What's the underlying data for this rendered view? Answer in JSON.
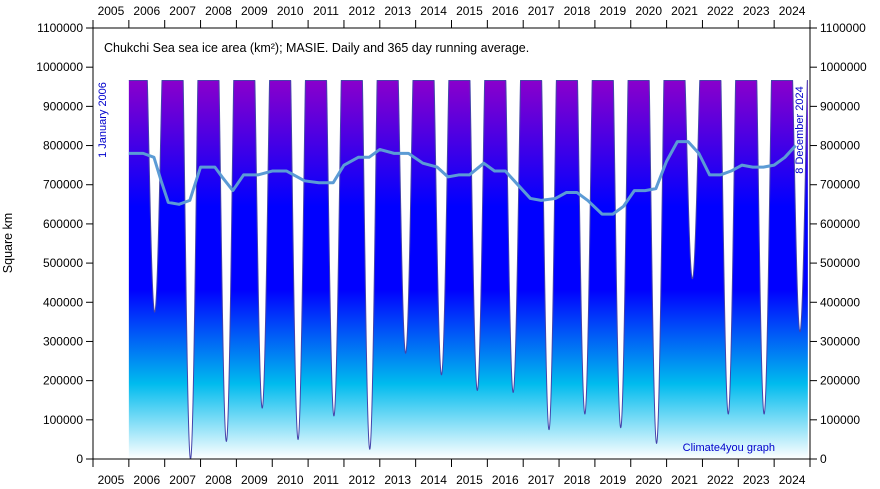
{
  "chart_data": {
    "type": "area",
    "title": "Chukchi Sea sea ice area (km²); MASIE. Daily and 365 day running average.",
    "ylabel": "Square km",
    "xlabel": "",
    "credit": "Climate4you graph",
    "start_label": "1 January 2006",
    "end_label": "8 December 2024",
    "ylim": [
      0,
      1100000
    ],
    "xlim": [
      2005,
      2025
    ],
    "grid": false,
    "x_ticks": [
      "2005",
      "2006",
      "2007",
      "2008",
      "2009",
      "2010",
      "2011",
      "2012",
      "2013",
      "2014",
      "2015",
      "2016",
      "2017",
      "2018",
      "2019",
      "2020",
      "2021",
      "2022",
      "2023",
      "2024"
    ],
    "y_ticks": [
      "0",
      "100000",
      "200000",
      "300000",
      "400000",
      "500000",
      "600000",
      "700000",
      "800000",
      "900000",
      "1000000",
      "1100000"
    ],
    "colors": {
      "fill_top": "#8800cc",
      "fill_mid": "#0000ff",
      "fill_low": "#00bbee",
      "fill_bottom": "#ffffff",
      "daily_line": "#4444aa",
      "running_average": "#5b9bd5",
      "annotation": "#0000cc"
    },
    "series": [
      {
        "name": "Daily",
        "annual_max": 966000,
        "annual_minima": [
          {
            "year": 2006,
            "value": 375000
          },
          {
            "year": 2007,
            "value": 0
          },
          {
            "year": 2008,
            "value": 45000
          },
          {
            "year": 2009,
            "value": 130000
          },
          {
            "year": 2010,
            "value": 50000
          },
          {
            "year": 2011,
            "value": 110000
          },
          {
            "year": 2012,
            "value": 25000
          },
          {
            "year": 2013,
            "value": 270000
          },
          {
            "year": 2014,
            "value": 215000
          },
          {
            "year": 2015,
            "value": 175000
          },
          {
            "year": 2016,
            "value": 170000
          },
          {
            "year": 2017,
            "value": 75000
          },
          {
            "year": 2018,
            "value": 115000
          },
          {
            "year": 2019,
            "value": 80000
          },
          {
            "year": 2020,
            "value": 40000
          },
          {
            "year": 2021,
            "value": 460000
          },
          {
            "year": 2022,
            "value": 115000
          },
          {
            "year": 2023,
            "value": 115000
          },
          {
            "year": 2024,
            "value": 325000
          }
        ]
      },
      {
        "name": "365 day running average",
        "x": [
          2006.0,
          2006.4,
          2006.7,
          2006.9,
          2007.1,
          2007.4,
          2007.7,
          2008.0,
          2008.4,
          2008.6,
          2008.9,
          2009.2,
          2009.6,
          2010.0,
          2010.4,
          2010.9,
          2011.3,
          2011.7,
          2012.0,
          2012.4,
          2012.7,
          2013.0,
          2013.4,
          2013.8,
          2014.2,
          2014.6,
          2014.9,
          2015.2,
          2015.5,
          2015.9,
          2016.2,
          2016.5,
          2016.9,
          2017.2,
          2017.5,
          2017.9,
          2018.2,
          2018.5,
          2018.8,
          2019.2,
          2019.5,
          2019.8,
          2020.1,
          2020.4,
          2020.7,
          2021.0,
          2021.3,
          2021.6,
          2021.9,
          2022.2,
          2022.5,
          2022.8,
          2023.1,
          2023.4,
          2023.7,
          2024.0,
          2024.3,
          2024.6
        ],
        "values": [
          780000,
          780000,
          770000,
          710000,
          655000,
          650000,
          660000,
          745000,
          745000,
          720000,
          685000,
          725000,
          725000,
          735000,
          735000,
          710000,
          705000,
          705000,
          750000,
          770000,
          770000,
          790000,
          780000,
          780000,
          755000,
          745000,
          720000,
          725000,
          725000,
          755000,
          735000,
          735000,
          695000,
          665000,
          660000,
          665000,
          680000,
          680000,
          660000,
          625000,
          625000,
          645000,
          685000,
          685000,
          690000,
          760000,
          810000,
          810000,
          780000,
          725000,
          725000,
          735000,
          750000,
          745000,
          745000,
          750000,
          770000,
          800000
        ]
      }
    ]
  }
}
